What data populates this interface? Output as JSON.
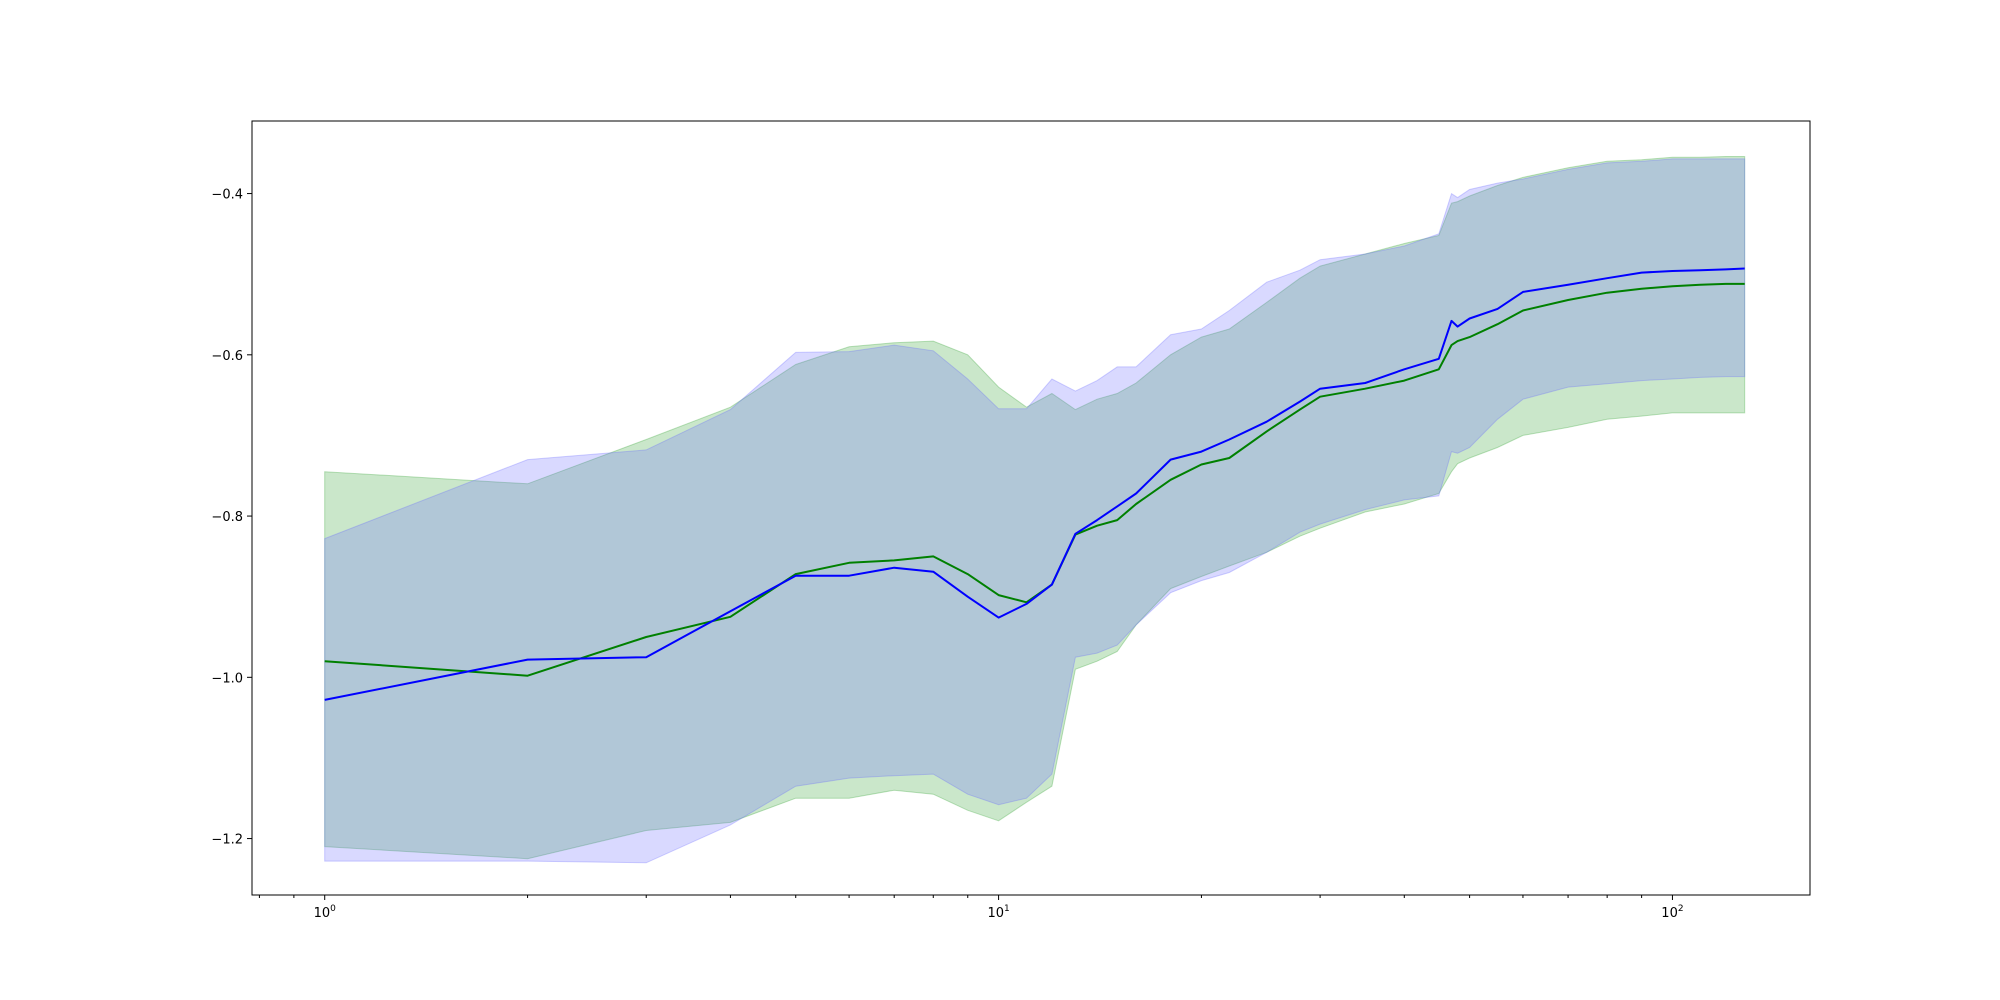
{
  "chart_data": {
    "type": "line",
    "x_scale": "log",
    "xlim": [
      0.78,
      160
    ],
    "ylim": [
      -1.27,
      -0.31
    ],
    "grid": false,
    "x_ticks": [
      {
        "value": 1,
        "base": "10",
        "exp": "0"
      },
      {
        "value": 10,
        "base": "10",
        "exp": "1"
      },
      {
        "value": 100,
        "base": "10",
        "exp": "2"
      }
    ],
    "y_ticks": [
      {
        "value": -1.2,
        "label": "−1.2"
      },
      {
        "value": -1.0,
        "label": "−1.0"
      },
      {
        "value": -0.8,
        "label": "−0.8"
      },
      {
        "value": -0.6,
        "label": "−0.6"
      },
      {
        "value": -0.4,
        "label": "−0.4"
      }
    ],
    "series": [
      {
        "color": "#008000",
        "band_color": "#2ca02c",
        "x": [
          1,
          2,
          3,
          4,
          5,
          6,
          7,
          8,
          9,
          10,
          11,
          12,
          13,
          14,
          15,
          16,
          18,
          20,
          22,
          25,
          28,
          30,
          35,
          40,
          45,
          47,
          48,
          50,
          55,
          60,
          70,
          80,
          90,
          100,
          110,
          120,
          128
        ],
        "y": [
          -0.98,
          -0.998,
          -0.95,
          -0.925,
          -0.872,
          -0.858,
          -0.855,
          -0.85,
          -0.872,
          -0.898,
          -0.907,
          -0.885,
          -0.823,
          -0.812,
          -0.805,
          -0.785,
          -0.755,
          -0.736,
          -0.728,
          -0.695,
          -0.668,
          -0.652,
          -0.642,
          -0.632,
          -0.618,
          -0.588,
          -0.583,
          -0.578,
          -0.562,
          -0.545,
          -0.532,
          -0.523,
          -0.518,
          -0.515,
          -0.513,
          -0.512,
          -0.512
        ],
        "y_lower": [
          -1.21,
          -1.225,
          -1.19,
          -1.18,
          -1.15,
          -1.15,
          -1.14,
          -1.145,
          -1.165,
          -1.178,
          -1.155,
          -1.135,
          -0.99,
          -0.98,
          -0.968,
          -0.935,
          -0.89,
          -0.875,
          -0.862,
          -0.845,
          -0.825,
          -0.815,
          -0.795,
          -0.785,
          -0.772,
          -0.745,
          -0.735,
          -0.728,
          -0.715,
          -0.7,
          -0.69,
          -0.68,
          -0.676,
          -0.672,
          -0.672,
          -0.672,
          -0.672
        ],
        "y_upper": [
          -0.745,
          -0.76,
          -0.705,
          -0.665,
          -0.612,
          -0.59,
          -0.585,
          -0.583,
          -0.6,
          -0.64,
          -0.665,
          -0.648,
          -0.668,
          -0.655,
          -0.648,
          -0.635,
          -0.6,
          -0.578,
          -0.568,
          -0.535,
          -0.505,
          -0.49,
          -0.475,
          -0.462,
          -0.452,
          -0.412,
          -0.41,
          -0.403,
          -0.39,
          -0.38,
          -0.368,
          -0.36,
          -0.358,
          -0.355,
          -0.355,
          -0.354,
          -0.354
        ]
      },
      {
        "color": "#0000ff",
        "band_color": "#6666ff",
        "x": [
          1,
          2,
          3,
          4,
          5,
          6,
          7,
          8,
          9,
          10,
          11,
          12,
          13,
          14,
          15,
          16,
          18,
          20,
          22,
          25,
          28,
          30,
          35,
          40,
          45,
          47,
          48,
          50,
          55,
          60,
          70,
          80,
          90,
          100,
          110,
          120,
          128
        ],
        "y": [
          -1.028,
          -0.978,
          -0.975,
          -0.918,
          -0.874,
          -0.874,
          -0.864,
          -0.869,
          -0.9,
          -0.926,
          -0.909,
          -0.885,
          -0.822,
          -0.805,
          -0.788,
          -0.772,
          -0.73,
          -0.72,
          -0.705,
          -0.683,
          -0.658,
          -0.642,
          -0.635,
          -0.618,
          -0.605,
          -0.558,
          -0.565,
          -0.555,
          -0.543,
          -0.522,
          -0.513,
          -0.505,
          -0.498,
          -0.496,
          -0.495,
          -0.494,
          -0.493
        ],
        "y_lower": [
          -1.228,
          -1.228,
          -1.23,
          -1.183,
          -1.135,
          -1.125,
          -1.122,
          -1.12,
          -1.145,
          -1.158,
          -1.15,
          -1.12,
          -0.975,
          -0.97,
          -0.96,
          -0.935,
          -0.895,
          -0.88,
          -0.87,
          -0.845,
          -0.82,
          -0.81,
          -0.792,
          -0.78,
          -0.775,
          -0.72,
          -0.722,
          -0.715,
          -0.68,
          -0.655,
          -0.64,
          -0.636,
          -0.632,
          -0.63,
          -0.628,
          -0.627,
          -0.627
        ],
        "y_upper": [
          -0.828,
          -0.73,
          -0.718,
          -0.668,
          -0.597,
          -0.596,
          -0.588,
          -0.595,
          -0.63,
          -0.667,
          -0.667,
          -0.63,
          -0.645,
          -0.632,
          -0.615,
          -0.615,
          -0.575,
          -0.568,
          -0.545,
          -0.51,
          -0.495,
          -0.482,
          -0.475,
          -0.465,
          -0.45,
          -0.4,
          -0.405,
          -0.395,
          -0.387,
          -0.382,
          -0.37,
          -0.362,
          -0.36,
          -0.357,
          -0.357,
          -0.357,
          -0.357
        ]
      }
    ]
  }
}
